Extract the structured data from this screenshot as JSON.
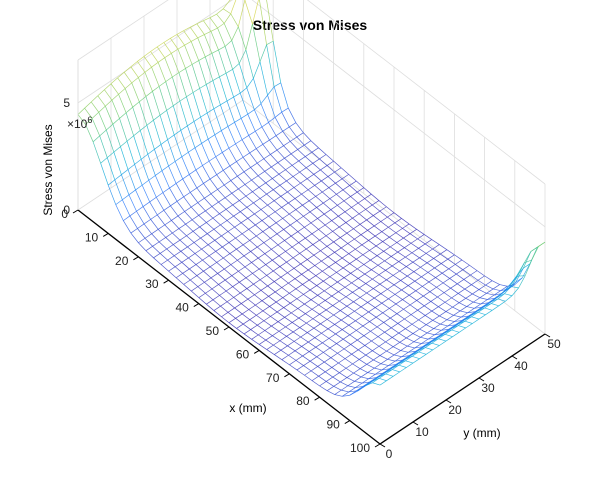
{
  "chart_data": {
    "type": "surface",
    "title": "Stress von Mises",
    "xlabel": "x (mm)",
    "ylabel": "y (mm)",
    "zlabel": "Stress von Mises",
    "z_exponent_label": "×10",
    "z_exponent_power": "6",
    "xlim": [
      0,
      100
    ],
    "ylim": [
      0,
      50
    ],
    "zlim": [
      0,
      7000000
    ],
    "xticks": [
      "0",
      "10",
      "20",
      "30",
      "40",
      "50",
      "60",
      "70",
      "80",
      "90",
      "100"
    ],
    "yticks": [
      "0",
      "10",
      "20",
      "30",
      "40",
      "50"
    ],
    "zticks": [
      "0",
      "5"
    ],
    "mesh": {
      "x_divisions": 40,
      "y_divisions": 25
    },
    "features": [
      {
        "description": "stress ridge along x=0 edge",
        "x": 0,
        "y": [
          0,
          50
        ],
        "z": 5000000
      },
      {
        "description": "peak at corner",
        "x": 0,
        "y": 50,
        "z": 7000000
      },
      {
        "description": "stress ridge near x=100 edge",
        "x": 100,
        "y": [
          0,
          50
        ],
        "z": 2500000
      },
      {
        "description": "minimum plateau in middle",
        "x": [
          35,
          65
        ],
        "y": [
          0,
          50
        ],
        "z": 500000
      }
    ],
    "colormap": "parula",
    "grid": true
  }
}
